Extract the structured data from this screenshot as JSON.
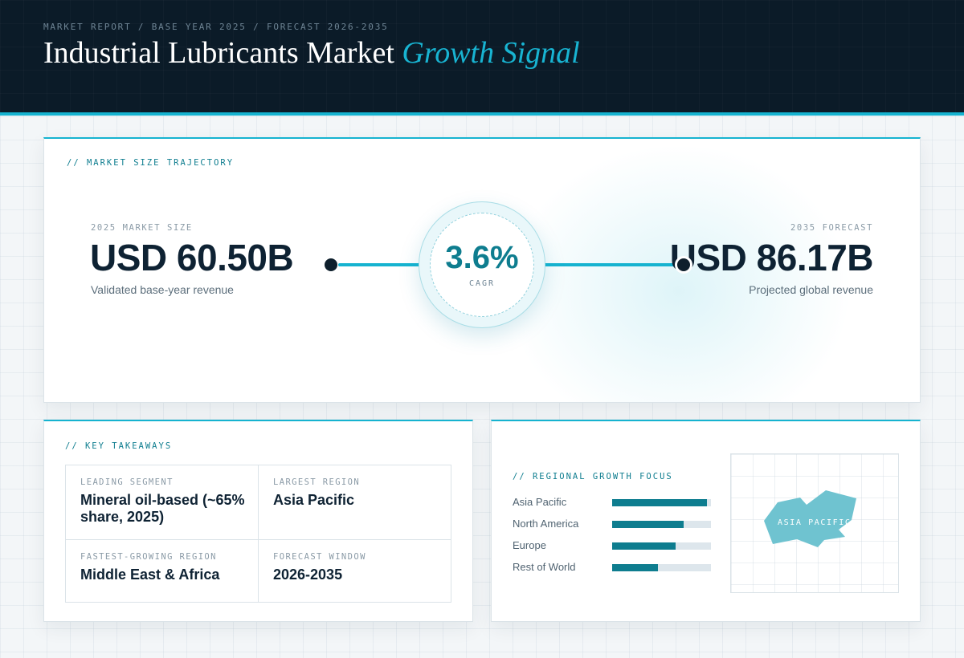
{
  "header": {
    "breadcrumb": "MARKET REPORT / BASE YEAR 2025 / FORECAST 2026-2035",
    "title_main": "Industrial Lubricants Market",
    "title_accent": "Growth Signal"
  },
  "trajectory": {
    "kicker": "// MARKET SIZE TRAJECTORY",
    "base": {
      "label": "2025 MARKET SIZE",
      "value": "USD 60.50B",
      "note": "Validated base-year revenue"
    },
    "forecast": {
      "label": "2035 FORECAST",
      "value": "USD 86.17B",
      "note": "Projected global revenue"
    },
    "cagr": {
      "value": "3.6%",
      "label": "CAGR"
    }
  },
  "takeaways": {
    "kicker": "// KEY TAKEAWAYS",
    "items": [
      {
        "label": "LEADING SEGMENT",
        "value": "Mineral oil-based (~65% share, 2025)"
      },
      {
        "label": "LARGEST REGION",
        "value": "Asia Pacific"
      },
      {
        "label": "FASTEST-GROWING REGION",
        "value": "Middle East & Africa"
      },
      {
        "label": "FORECAST WINDOW",
        "value": "2026-2035"
      }
    ]
  },
  "regional": {
    "kicker": "// REGIONAL GROWTH FOCUS",
    "regions": [
      {
        "name": "Asia Pacific",
        "level": 0.96
      },
      {
        "name": "North America",
        "level": 0.72
      },
      {
        "name": "Europe",
        "level": 0.64
      },
      {
        "name": "Rest of World",
        "level": 0.46
      }
    ],
    "map_label": "ASIA PACIFIC"
  },
  "colors": {
    "header_bg": "#0b1b28",
    "accent": "#16b3d0",
    "teal": "#0e7d8f",
    "ink": "#0e2233",
    "map_fill": "#6fc3d0"
  }
}
